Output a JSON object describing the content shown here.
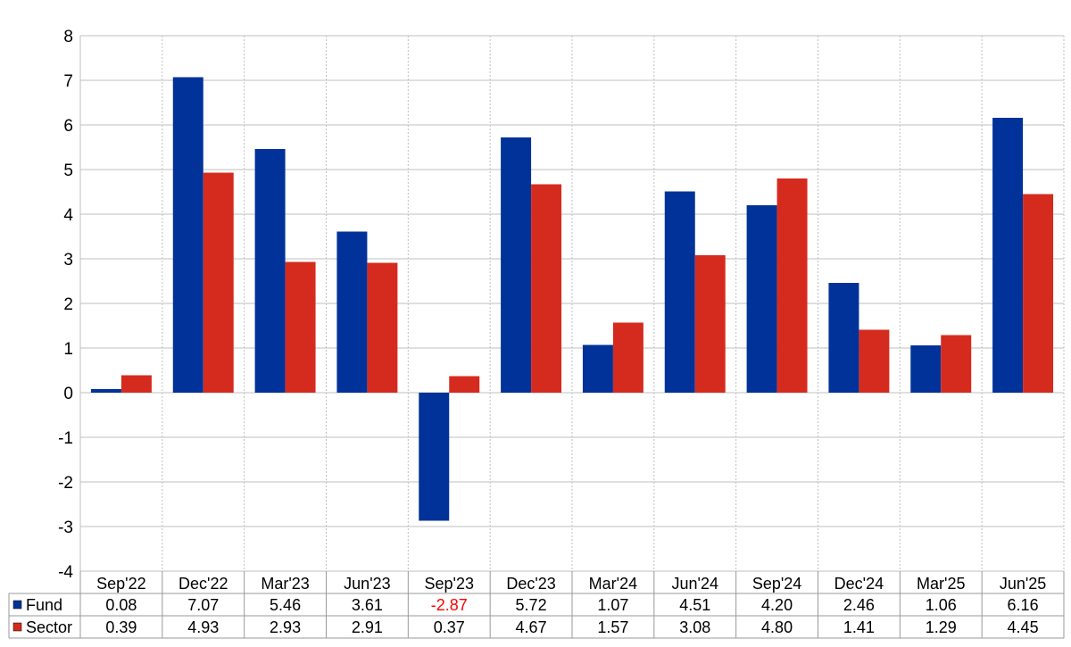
{
  "chart_data": {
    "type": "bar",
    "categories": [
      "Sep'22",
      "Dec'22",
      "Mar'23",
      "Jun'23",
      "Sep'23",
      "Dec'23",
      "Mar'24",
      "Jun'24",
      "Sep'24",
      "Dec'24",
      "Mar'25",
      "Jun'25"
    ],
    "series": [
      {
        "name": "Fund",
        "color": "#003299",
        "values": [
          0.08,
          7.07,
          5.46,
          3.61,
          -2.87,
          5.72,
          1.07,
          4.51,
          4.2,
          2.46,
          1.06,
          6.16
        ],
        "labels": [
          "0.08",
          "7.07",
          "5.46",
          "3.61",
          "-2.87",
          "5.72",
          "1.07",
          "4.51",
          "4.20",
          "2.46",
          "1.06",
          "6.16"
        ]
      },
      {
        "name": "Sector",
        "color": "#d52b1e",
        "values": [
          0.39,
          4.93,
          2.93,
          2.91,
          0.37,
          4.67,
          1.57,
          3.08,
          4.8,
          1.41,
          1.29,
          4.45
        ],
        "labels": [
          "0.39",
          "4.93",
          "2.93",
          "2.91",
          "0.37",
          "4.67",
          "1.57",
          "3.08",
          "4.80",
          "1.41",
          "1.29",
          "4.45"
        ]
      }
    ],
    "ylim": [
      -4,
      8
    ],
    "yticks": [
      "8",
      "7",
      "6",
      "5",
      "4",
      "3",
      "2",
      "1",
      "0",
      "-1",
      "-2",
      "-3",
      "-4"
    ],
    "grid": true,
    "negative_label_color": "#ff0000",
    "gridline_color": "#bfbfbf",
    "table_border_color": "#999999"
  }
}
